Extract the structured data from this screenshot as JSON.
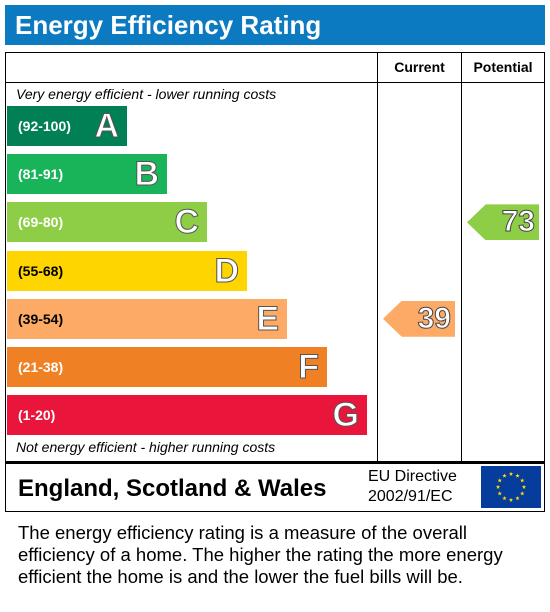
{
  "title": "Energy Efficiency Rating",
  "columns": {
    "current": "Current",
    "potential": "Potential"
  },
  "top_note": "Very energy efficient - lower running costs",
  "bottom_note": "Not energy efficient - higher running costs",
  "footer": {
    "country": "England, Scotland & Wales",
    "directive_line1": "EU Directive",
    "directive_line2": "2002/91/EC"
  },
  "description": "The energy efficiency rating is a measure of the overall efficiency of a home. The higher the rating the more energy efficient the home is and the lower the fuel bills will be.",
  "chart_data": {
    "type": "bar",
    "categories": [
      "A",
      "B",
      "C",
      "D",
      "E",
      "F",
      "G"
    ],
    "bands": [
      {
        "letter": "A",
        "range": "(92-100)",
        "min": 92,
        "max": 100,
        "color": "#008054"
      },
      {
        "letter": "B",
        "range": "(81-91)",
        "min": 81,
        "max": 91,
        "color": "#19b459"
      },
      {
        "letter": "C",
        "range": "(69-80)",
        "min": 69,
        "max": 80,
        "color": "#8dce46"
      },
      {
        "letter": "D",
        "range": "(55-68)",
        "min": 55,
        "max": 68,
        "color": "#ffd500"
      },
      {
        "letter": "E",
        "range": "(39-54)",
        "min": 39,
        "max": 54,
        "color": "#fcaa65"
      },
      {
        "letter": "F",
        "range": "(21-38)",
        "min": 21,
        "max": 38,
        "color": "#ef8023"
      },
      {
        "letter": "G",
        "range": "(1-20)",
        "min": 1,
        "max": 20,
        "color": "#e9153b"
      }
    ],
    "current": {
      "value": 39,
      "band": "E",
      "color": "#fcaa65"
    },
    "potential": {
      "value": 73,
      "band": "C",
      "color": "#8dce46"
    }
  }
}
